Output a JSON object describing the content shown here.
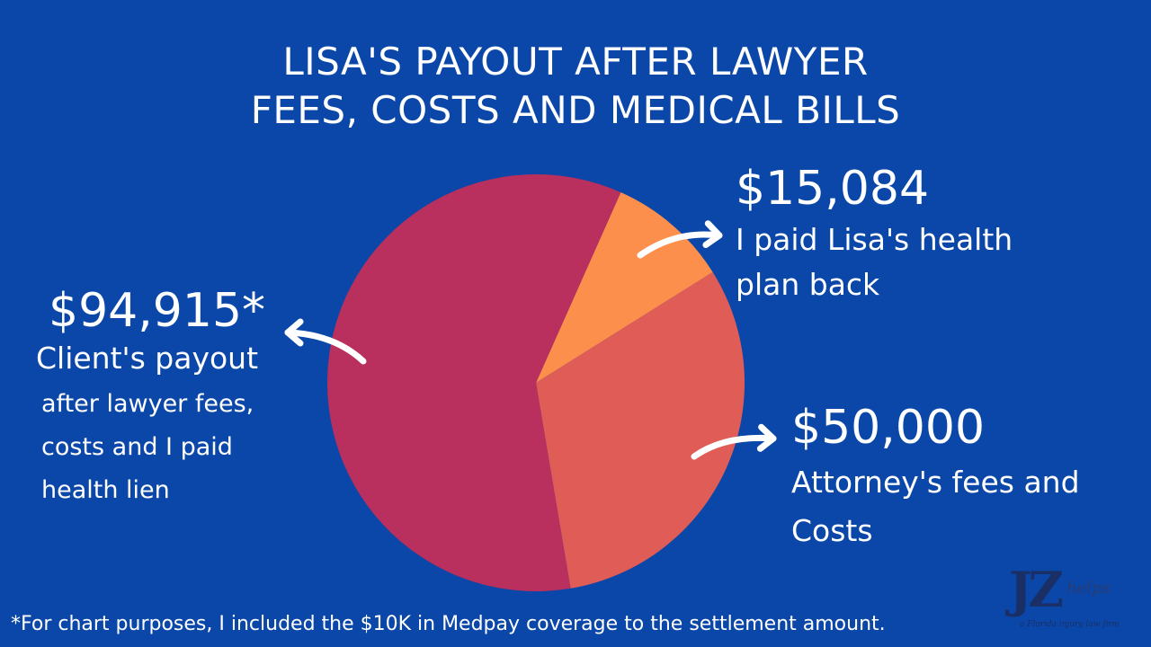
{
  "title": {
    "line1": "LISA'S PAYOUT AFTER LAWYER",
    "line2": "FEES, COSTS AND MEDICAL BILLS"
  },
  "labels": {
    "health": {
      "amount": "$15,084",
      "line1": "I paid Lisa's health",
      "line2": "plan back"
    },
    "client": {
      "amount": "$94,915*",
      "line1": "Client's payout",
      "sub1": "after lawyer fees,",
      "sub2": "costs and I paid",
      "sub3": "health lien"
    },
    "fees": {
      "amount": "$50,000",
      "line1": "Attorney's fees and",
      "line2": "Costs"
    }
  },
  "footnote": "*For chart purposes, I included the $10K in Medpay coverage to the settlement amount.",
  "logo": {
    "mark": "JZ",
    "word": "helps",
    "tagline": "a Florida injury law firm"
  },
  "chart_data": {
    "type": "pie",
    "title": "LISA'S PAYOUT AFTER LAWYER FEES, COSTS AND MEDICAL BILLS",
    "slices": [
      {
        "label": "Client's payout after lawyer fees, costs and I paid health lien",
        "value": 94915,
        "color": "#b92f5e"
      },
      {
        "label": "I paid Lisa's health plan back",
        "value": 15084,
        "color": "#fd8f4c"
      },
      {
        "label": "Attorney's fees and Costs",
        "value": 50000,
        "color": "#e05d57"
      }
    ],
    "arrow_color": "#ffffff"
  }
}
